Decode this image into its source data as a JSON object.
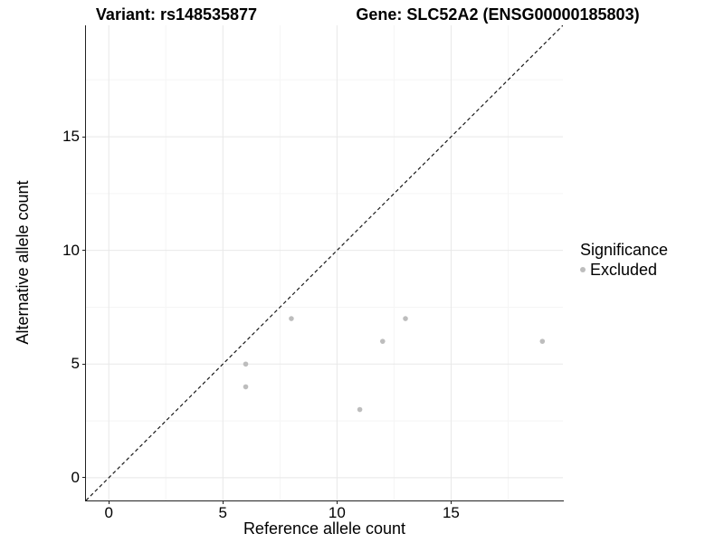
{
  "titles": {
    "variant": "Variant: rs148535877",
    "gene": "Gene: SLC52A2 (ENSG00000185803)"
  },
  "colors": {
    "background": "#ffffff",
    "text": "#000000",
    "axis": "#222222",
    "grid_major": "#e8e8e8",
    "grid_minor": "#f5f5f5",
    "identity_line": "#1a1a1a",
    "excluded_point": "#bdbdbd"
  },
  "chart_data": {
    "type": "scatter",
    "title": "Variant: rs148535877 | Gene: SLC52A2 (ENSG00000185803)",
    "xlabel": "Reference allele count",
    "ylabel": "Alternative allele count",
    "xlim": [
      -1,
      19.9
    ],
    "ylim": [
      -1,
      19.9
    ],
    "x_ticks": [
      0,
      5,
      10,
      15
    ],
    "y_ticks": [
      0,
      5,
      10,
      15
    ],
    "x_minor_ticks": [
      2.5,
      7.5,
      12.5,
      17.5
    ],
    "y_minor_ticks": [
      2.5,
      7.5,
      12.5,
      17.5
    ],
    "grid": true,
    "identity_line": {
      "style": "dashed",
      "from": [
        -1,
        -1
      ],
      "to": [
        19.9,
        19.9
      ]
    },
    "series": [
      {
        "name": "Excluded",
        "color": "#bdbdbd",
        "point_radius": 2.8,
        "points": [
          [
            6,
            4
          ],
          [
            6,
            5
          ],
          [
            8,
            7
          ],
          [
            11,
            3
          ],
          [
            12,
            6
          ],
          [
            13,
            7
          ],
          [
            19,
            6
          ]
        ]
      }
    ],
    "legend": {
      "title": "Significance",
      "position": "right",
      "items": [
        {
          "label": "Excluded",
          "color": "#bdbdbd"
        }
      ]
    }
  }
}
